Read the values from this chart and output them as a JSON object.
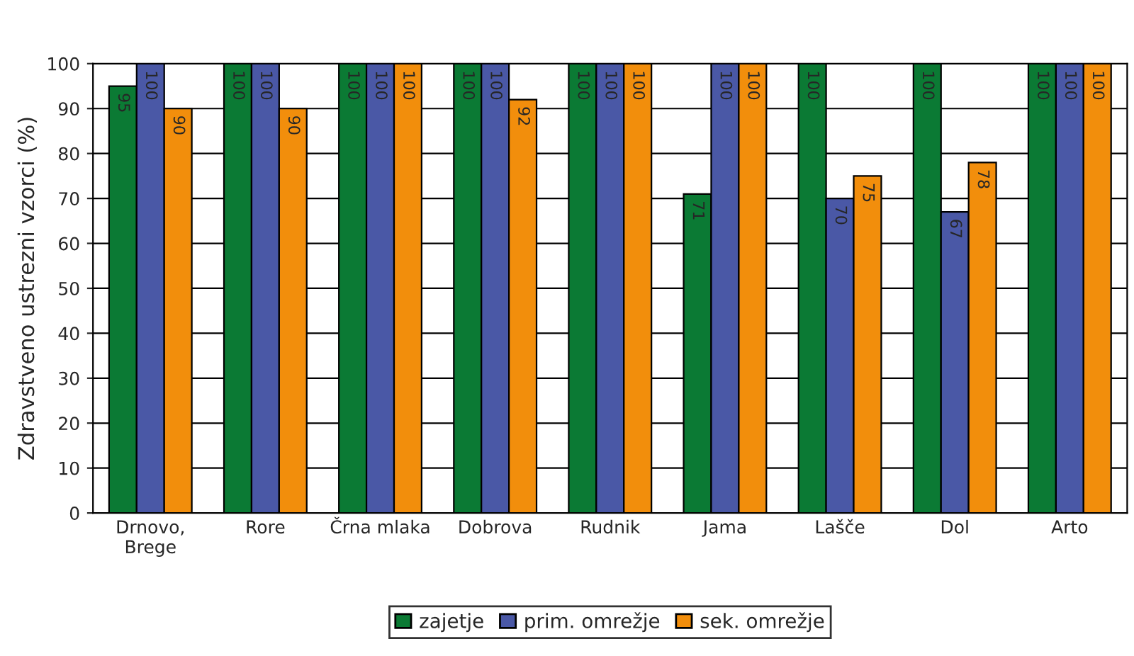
{
  "chart_data": {
    "type": "bar",
    "ylabel": "Zdravstveno ustrezni vzorci (%)",
    "categories": [
      "Drnovo,\nBrege",
      "Rore",
      "Črna mlaka",
      "Dobrova",
      "Rudnik",
      "Jama",
      "Lašče",
      "Dol",
      "Arto"
    ],
    "series": [
      {
        "name": "zajetje",
        "color": "#0b7a34",
        "values": [
          95,
          100,
          100,
          100,
          100,
          71,
          100,
          100,
          100
        ]
      },
      {
        "name": "prim. omrežje",
        "color": "#4a58a6",
        "values": [
          100,
          100,
          100,
          100,
          100,
          100,
          70,
          67,
          100
        ]
      },
      {
        "name": "sek. omrežje",
        "color": "#f28e0c",
        "values": [
          90,
          90,
          100,
          92,
          100,
          100,
          75,
          78,
          100
        ]
      }
    ],
    "ylim": [
      0,
      100
    ],
    "yticks": [
      0,
      10,
      20,
      30,
      40,
      50,
      60,
      70,
      80,
      90,
      100
    ],
    "grid": "y",
    "legend": "bottom",
    "data_labels": true
  }
}
